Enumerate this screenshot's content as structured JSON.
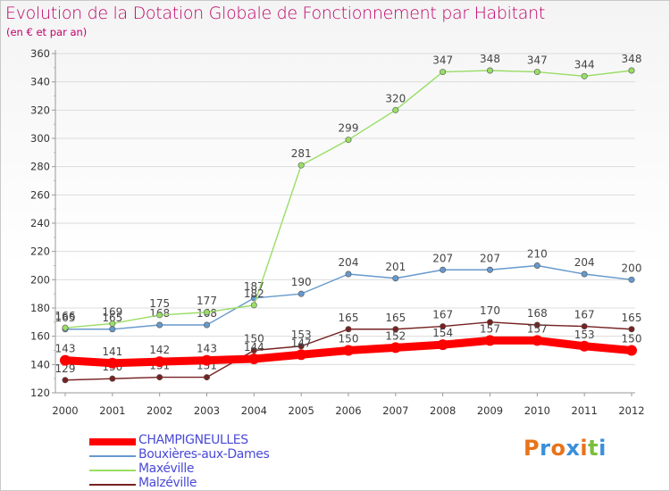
{
  "chart_data": {
    "type": "line",
    "title": "Evolution de la Dotation Globale de Fonctionnement par Habitant",
    "subtitle": "(en € et par an)",
    "categories": [
      "2000",
      "2001",
      "2002",
      "2003",
      "2004",
      "2005",
      "2006",
      "2007",
      "2008",
      "2009",
      "2010",
      "2011",
      "2012"
    ],
    "ylim": [
      120,
      360
    ],
    "yticks": [
      120,
      140,
      160,
      180,
      200,
      220,
      240,
      260,
      280,
      300,
      320,
      340,
      360
    ],
    "grid": "horizontal",
    "legend_position": "bottom-left",
    "series": [
      {
        "name": "CHAMPIGNEULLES",
        "color": "#ff0000",
        "values": [
          143,
          141,
          142,
          143,
          144,
          147,
          150,
          152,
          154,
          157,
          157,
          153,
          150
        ]
      },
      {
        "name": "Bouxières-aux-Dames",
        "color": "#6699cc",
        "values": [
          165,
          165,
          168,
          168,
          187,
          190,
          204,
          201,
          207,
          207,
          210,
          204,
          200
        ]
      },
      {
        "name": "Maxéville",
        "color": "#99dd66",
        "values": [
          166,
          169,
          175,
          177,
          182,
          281,
          299,
          320,
          347,
          348,
          347,
          344,
          348
        ]
      },
      {
        "name": "Malzéville",
        "color": "#772222",
        "values": [
          129,
          130,
          131,
          131,
          150,
          153,
          165,
          165,
          167,
          170,
          168,
          167,
          165
        ]
      }
    ]
  },
  "brand": {
    "letters": [
      "P",
      "r",
      "o",
      "x",
      "i",
      "t",
      "i"
    ],
    "colors": [
      "#e8731a",
      "#3a8fd8",
      "#e8731a",
      "#3a8fd8",
      "#e8731a",
      "#7bbf3a",
      "#3a8fd8"
    ]
  }
}
